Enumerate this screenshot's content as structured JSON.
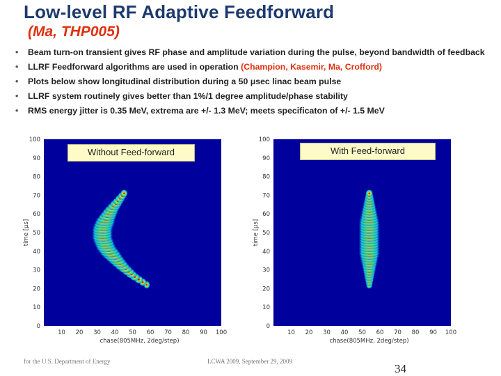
{
  "slide": {
    "title": "Low-level RF Adaptive Feedforward",
    "subtitle": "(Ma, THP005)",
    "bullets": [
      {
        "text": "Beam turn-on transient gives RF phase and amplitude variation during the pulse, beyond bandwidth of feedback",
        "highlight": ""
      },
      {
        "text": "LLRF Feedforward algorithms are used in operation ",
        "highlight": "(Champion, Kasemir, Ma, Crofford)"
      },
      {
        "text": "Plots below show longitudinal distribution during a 50 μsec linac beam pulse",
        "highlight": ""
      },
      {
        "text": "LLRF system routinely gives better than 1%/1 degree amplitude/phase stability",
        "highlight": ""
      },
      {
        "text": "RMS energy jitter is 0.35 MeV, extrema are +/- 1.3 MeV; meets specificaton of +/- 1.5 MeV",
        "highlight": ""
      }
    ],
    "bullet_glyph": "•"
  },
  "plots": {
    "left_label": "Without Feed-forward",
    "right_label": "With Feed-forward",
    "left_ylabel": "time [μs]",
    "right_ylabel": "time [μs]",
    "left_xlabel": "chase(805MHz, 2deg/step)",
    "right_xlabel": "chase(805MHz, 2deg/step)",
    "y_ticks": [
      "0",
      "10",
      "20",
      "30",
      "40",
      "50",
      "60",
      "70",
      "80",
      "90",
      "100"
    ],
    "left_x_ticks": [
      "10",
      "20",
      "30",
      "40",
      "50",
      "60",
      "70",
      "80",
      "90",
      "100"
    ],
    "right_x_ticks": [
      "10",
      "20",
      "30",
      "40",
      "50",
      "60",
      "70",
      "80",
      "90",
      "100"
    ]
  },
  "chart_data": [
    {
      "type": "heatmap",
      "title": "Without Feed-forward",
      "xlabel": "chase(805MHz, 2deg/step)",
      "ylabel": "time [μs]",
      "xlim": [
        0,
        100
      ],
      "ylim": [
        0,
        100
      ],
      "ridge": {
        "time": [
          22,
          27,
          32,
          37,
          42,
          47,
          52,
          57,
          62,
          67,
          72
        ],
        "phase": [
          58,
          50,
          44,
          39,
          35,
          33,
          33,
          35,
          38,
          42,
          46
        ]
      },
      "colorscale": [
        "#00009c",
        "#18c8e8",
        "#3cdc78",
        "#f0e020",
        "#e83018",
        "#900000"
      ]
    },
    {
      "type": "heatmap",
      "title": "With Feed-forward",
      "xlabel": "chase(805MHz, 2deg/step)",
      "ylabel": "time [μs]",
      "xlim": [
        0,
        100
      ],
      "ylim": [
        0,
        100
      ],
      "ridge": {
        "time": [
          22,
          27,
          32,
          37,
          42,
          47,
          52,
          57,
          62,
          67,
          72
        ],
        "phase": [
          54,
          54,
          54,
          54,
          54,
          54,
          54,
          54,
          54,
          54,
          54
        ]
      },
      "colorscale": [
        "#00009c",
        "#18c8e8",
        "#3cdc78",
        "#f0e020",
        "#e83018",
        "#900000"
      ]
    }
  ],
  "footer": {
    "left": "for the U.S. Department of Energy",
    "middle": "LCWA 2009, September 29, 2009",
    "page": "34"
  },
  "colors": {
    "title": "#1d3a6e",
    "accent": "#e03010",
    "plot_background": "#00009c"
  }
}
